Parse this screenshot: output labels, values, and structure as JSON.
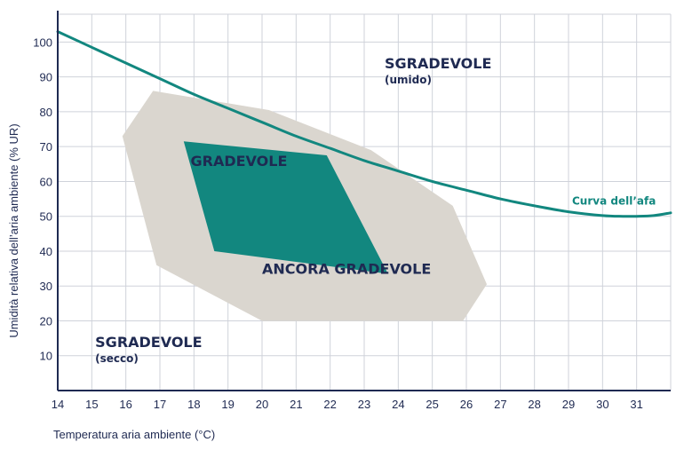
{
  "chart_data": {
    "type": "line",
    "xlabel": "Temperatura aria ambiente (°C)",
    "ylabel": "Umidità relativa dell’aria ambiente (% UR)",
    "x_ticks": [
      "14",
      "15",
      "16",
      "17",
      "18",
      "19",
      "20",
      "21",
      "22",
      "23",
      "24",
      "25",
      "26",
      "27",
      "28",
      "29",
      "30",
      "31"
    ],
    "y_ticks": [
      "10",
      "20",
      "30",
      "40",
      "50",
      "60",
      "70",
      "80",
      "90",
      "100"
    ],
    "xlim": [
      14,
      32
    ],
    "ylim": [
      0,
      108
    ],
    "grid": true,
    "colors": {
      "curve": "#12877f",
      "comfort": "#12877f",
      "tolerable": "#dad6cf",
      "axis": "#1f2a52",
      "grid": "#cfd2da"
    },
    "series": [
      {
        "name": "Curva dell’afa",
        "x": [
          14,
          15,
          16,
          17,
          18,
          19,
          20,
          21,
          22,
          23,
          24,
          25,
          26,
          27,
          28,
          29,
          30,
          30.6,
          31,
          31.5,
          32
        ],
        "y": [
          103,
          98.5,
          94,
          89.5,
          85,
          81,
          77,
          73,
          69.5,
          66,
          63,
          60,
          57.5,
          55,
          53,
          51.3,
          50.2,
          50,
          50,
          50.2,
          51
        ]
      }
    ],
    "regions": [
      {
        "label": "ANCORA GRADEVOLE",
        "points": [
          [
            15.9,
            73
          ],
          [
            16.8,
            86
          ],
          [
            20.2,
            80.5
          ],
          [
            23.2,
            69
          ],
          [
            25.6,
            53
          ],
          [
            26.6,
            30.5
          ],
          [
            25.9,
            20
          ],
          [
            20.0,
            20
          ],
          [
            16.9,
            36
          ]
        ]
      },
      {
        "label": "GRADEVOLE",
        "points": [
          [
            17.7,
            71.5
          ],
          [
            21.9,
            67.5
          ],
          [
            23.7,
            33.5
          ],
          [
            18.6,
            40
          ]
        ]
      }
    ],
    "annotations": [
      {
        "text": "SGRADEVOLE",
        "sub": "(umido)",
        "x": 23.6,
        "y": 92.5
      },
      {
        "text": "GRADEVOLE",
        "x": 17.9,
        "y": 64.5
      },
      {
        "text": "ANCORA GRADEVOLE",
        "x": 20.0,
        "y": 33.5
      },
      {
        "text": "SGRADEVOLE",
        "sub": "(secco)",
        "x": 15.1,
        "y": 12.5
      }
    ],
    "curve_label": {
      "text": "Curva dell’afa",
      "x": 29.0,
      "y": 53.3
    }
  }
}
